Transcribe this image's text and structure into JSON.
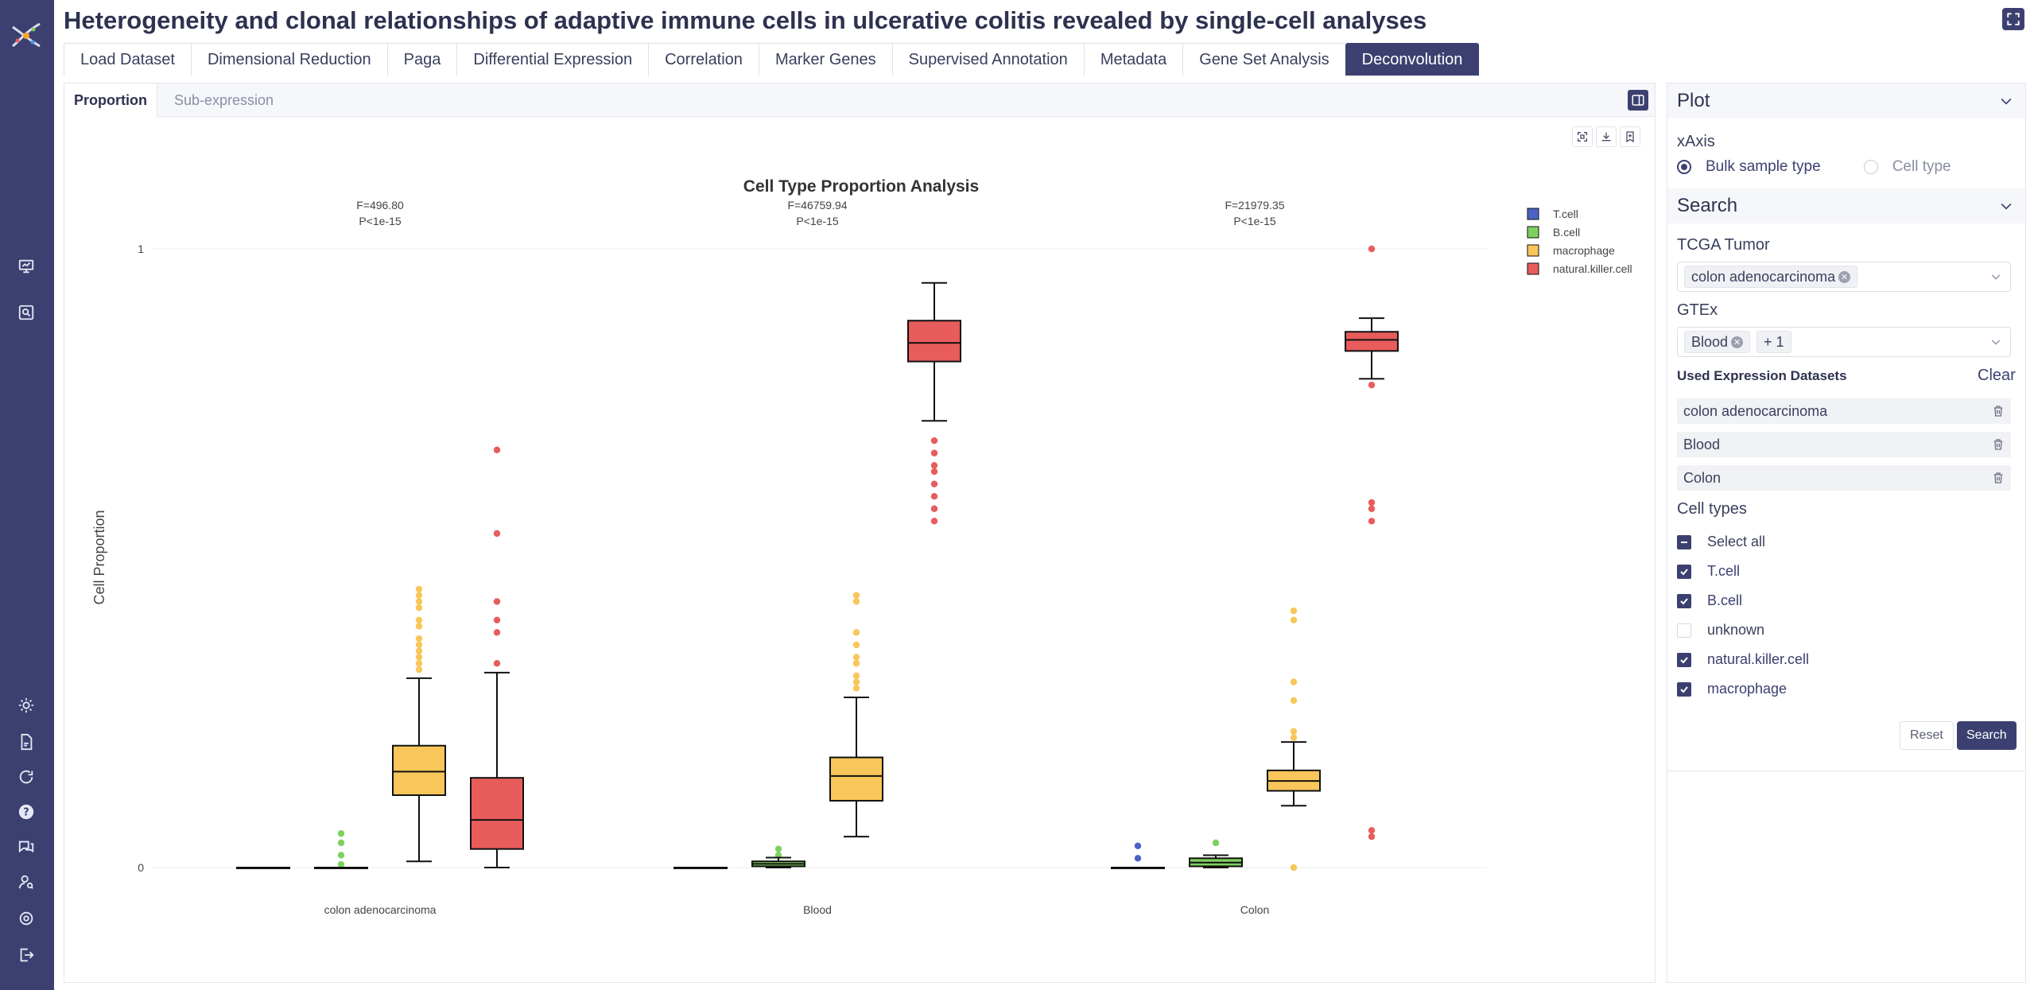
{
  "page": {
    "title": "Heterogeneity and clonal relationships of adaptive immune cells in ulcerative colitis revealed by single-cell analyses"
  },
  "tabs": [
    "Load Dataset",
    "Dimensional Reduction",
    "Paga",
    "Differential Expression",
    "Correlation",
    "Marker Genes",
    "Supervised Annotation",
    "Metadata",
    "Gene Set Analysis",
    "Deconvolution"
  ],
  "active_tab": "Deconvolution",
  "subtabs": {
    "active": "Proportion",
    "inactive": "Sub-expression"
  },
  "side": {
    "plot_header": "Plot",
    "xaxis_label": "xAxis",
    "xaxis_options": [
      "Bulk sample type",
      "Cell type"
    ],
    "search_header": "Search",
    "tcga_label": "TCGA Tumor",
    "tcga_chip": "colon adenocarcinoma",
    "gtex_label": "GTEx",
    "gtex_chip": "Blood",
    "gtex_more": "+ 1",
    "used_title": "Used Expression Datasets",
    "clear": "Clear",
    "datasets": [
      "colon adenocarcinoma",
      "Blood",
      "Colon"
    ],
    "cell_types_label": "Cell types",
    "cell_types": [
      {
        "label": "Select all",
        "state": "partial"
      },
      {
        "label": "T.cell",
        "state": "checked"
      },
      {
        "label": "B.cell",
        "state": "checked"
      },
      {
        "label": "unknown",
        "state": "unchecked"
      },
      {
        "label": "natural.killer.cell",
        "state": "checked"
      },
      {
        "label": "macrophage",
        "state": "checked"
      }
    ],
    "reset": "Reset",
    "search": "Search"
  },
  "colors": {
    "accent": "#3c4070",
    "tcell": "#4a63c4",
    "bcell": "#7ed15e",
    "macrophage": "#f8c65a",
    "nk": "#e85c5c"
  },
  "chart_data": {
    "type": "box",
    "title": "Cell Type Proportion Analysis",
    "ylabel": "Cell Proportion",
    "ylim": [
      0,
      1
    ],
    "yticks": [
      "0",
      "1"
    ],
    "categories": [
      "colon adenocarcinoma",
      "Blood",
      "Colon"
    ],
    "stats": [
      {
        "category": "colon adenocarcinoma",
        "f": "F=496.80",
        "p": "P<1e-15"
      },
      {
        "category": "Blood",
        "f": "F=46759.94",
        "p": "P<1e-15"
      },
      {
        "category": "Colon",
        "f": "F=21979.35",
        "p": "P<1e-15"
      }
    ],
    "legend": [
      "T.cell",
      "B.cell",
      "macrophage",
      "natural.killer.cell"
    ],
    "series": [
      {
        "name": "T.cell",
        "boxes": [
          {
            "min": 0,
            "q1": 0,
            "median": 0,
            "q3": 0,
            "max": 0,
            "outliers": []
          },
          {
            "min": 0,
            "q1": 0,
            "median": 0,
            "q3": 0,
            "max": 0,
            "outliers": []
          },
          {
            "min": 0,
            "q1": 0,
            "median": 0,
            "q3": 0,
            "max": 0,
            "outliers": [
              0.015,
              0.035
            ]
          }
        ]
      },
      {
        "name": "B.cell",
        "boxes": [
          {
            "min": 0,
            "q1": 0,
            "median": 0,
            "q3": 0,
            "max": 0,
            "outliers": [
              0.005,
              0.02,
              0.04,
              0.055
            ]
          },
          {
            "min": 0,
            "q1": 0.002,
            "median": 0.006,
            "q3": 0.01,
            "max": 0.016,
            "outliers": [
              0.02,
              0.03
            ]
          },
          {
            "min": 0,
            "q1": 0.002,
            "median": 0.008,
            "q3": 0.015,
            "max": 0.02,
            "outliers": [
              0.04
            ]
          }
        ]
      },
      {
        "name": "macrophage",
        "boxes": [
          {
            "min": 0.01,
            "q1": 0.117,
            "median": 0.155,
            "q3": 0.197,
            "max": 0.306,
            "outliers": [
              0.32,
              0.33,
              0.34,
              0.35,
              0.36,
              0.37,
              0.39,
              0.4,
              0.42,
              0.43,
              0.44,
              0.45
            ]
          },
          {
            "min": 0.05,
            "q1": 0.108,
            "median": 0.148,
            "q3": 0.178,
            "max": 0.275,
            "outliers": [
              0.29,
              0.3,
              0.31,
              0.33,
              0.34,
              0.36,
              0.38,
              0.43,
              0.44
            ]
          },
          {
            "min": 0.1,
            "q1": 0.124,
            "median": 0.14,
            "q3": 0.157,
            "max": 0.203,
            "outliers": [
              0,
              0.21,
              0.22,
              0.27,
              0.3,
              0.4,
              0.415
            ]
          }
        ]
      },
      {
        "name": "natural.killer.cell",
        "boxes": [
          {
            "min": 0,
            "q1": 0.03,
            "median": 0.077,
            "q3": 0.145,
            "max": 0.315,
            "outliers": [
              0.33,
              0.38,
              0.4,
              0.43,
              0.54,
              0.675
            ]
          },
          {
            "min": 0.722,
            "q1": 0.818,
            "median": 0.848,
            "q3": 0.884,
            "max": 0.945,
            "outliers": [
              0.56,
              0.58,
              0.6,
              0.62,
              0.64,
              0.65,
              0.67,
              0.69
            ]
          },
          {
            "min": 0.79,
            "q1": 0.835,
            "median": 0.853,
            "q3": 0.866,
            "max": 0.888,
            "outliers": [
              0.05,
              0.06,
              0.56,
              0.58,
              0.59,
              0.78,
              1
            ]
          }
        ]
      }
    ]
  }
}
